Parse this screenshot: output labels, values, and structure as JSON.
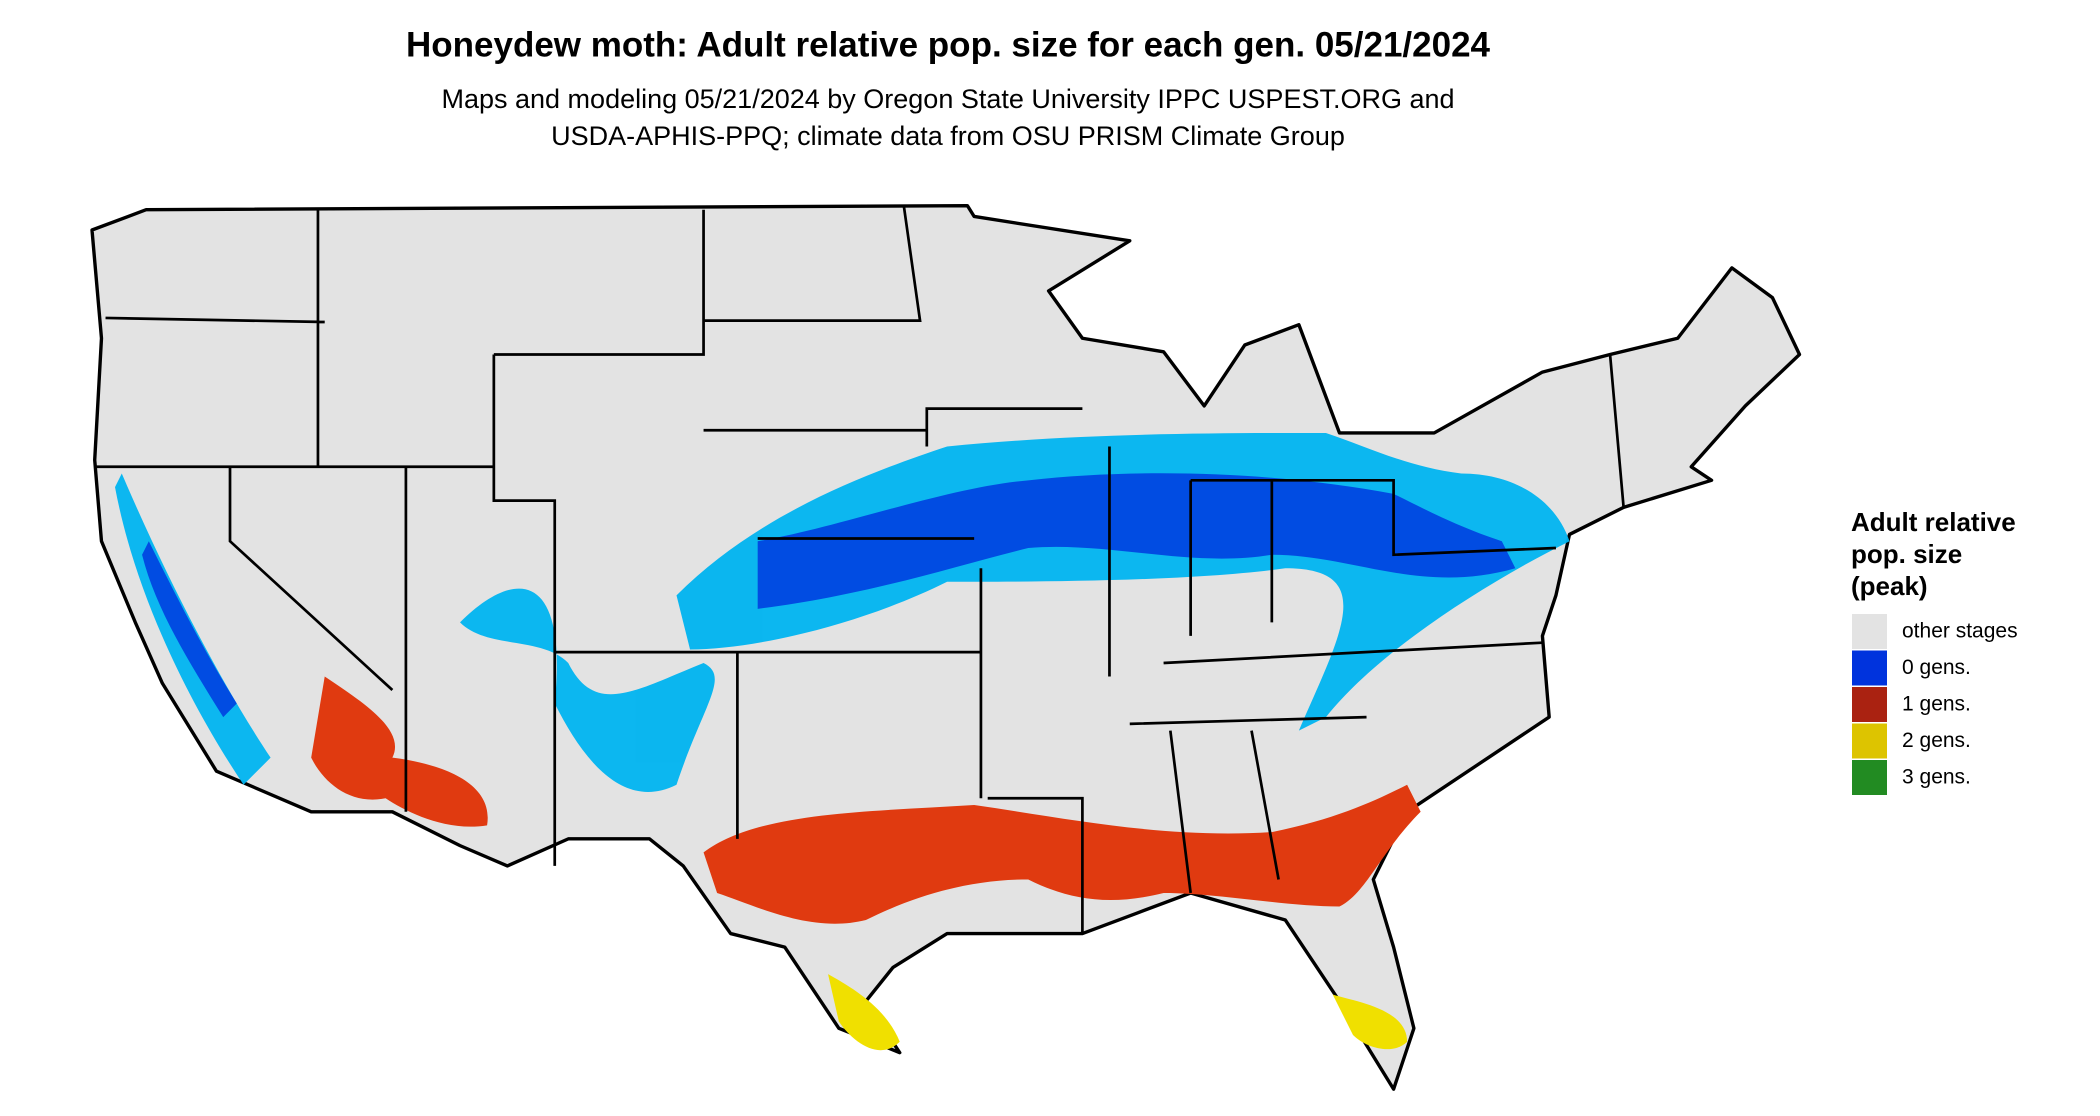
{
  "header": {
    "title": "Honeydew moth: Adult relative pop. size for each gen. 05/21/2024",
    "subtitle_lines": [
      "Maps and modeling 05/21/2024 by Oregon State University IPPC USPEST.ORG and",
      "USDA-APHIS-PPQ; climate data from OSU PRISM Climate Group"
    ]
  },
  "legend": {
    "title_lines": [
      "Adult relative",
      "pop. size",
      "(peak)"
    ],
    "items": [
      {
        "label": "other stages",
        "color": "#e3e3e3"
      },
      {
        "label": "0 gens.",
        "color": "#0033dd"
      },
      {
        "label": "1 gens.",
        "color": "#aa2211"
      },
      {
        "label": "2 gens.",
        "color": "#ddc400"
      },
      {
        "label": "3 gens.",
        "color": "#228b22"
      }
    ]
  }
}
